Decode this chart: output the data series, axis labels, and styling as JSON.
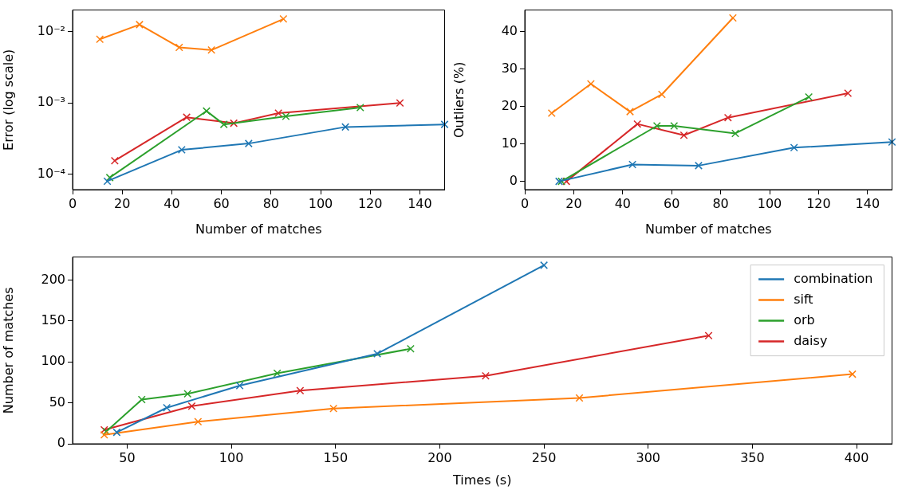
{
  "chart_data": [
    {
      "type": "line",
      "xlabel": "Number of matches",
      "ylabel": "Error (log scale)",
      "log": "y",
      "marker": "cross",
      "xlim": [
        0,
        150
      ],
      "xticks": [
        0,
        20,
        40,
        60,
        80,
        100,
        120,
        140
      ],
      "ylim": [
        6.1e-05,
        0.02
      ],
      "yticks": [
        {
          "value": 0.0001,
          "label": "10⁻⁴"
        },
        {
          "value": 0.001,
          "label": "10⁻³"
        },
        {
          "value": 0.01,
          "label": "10⁻²"
        }
      ],
      "series": [
        {
          "color": "#1f77b4",
          "x": [
            14,
            44,
            71,
            110,
            150
          ],
          "values": [
            8e-05,
            0.00022,
            0.00027,
            0.00046,
            0.0005
          ]
        },
        {
          "color": "#ff7f0e",
          "x": [
            11,
            27,
            43,
            56,
            85
          ],
          "values": [
            0.0078,
            0.0125,
            0.006,
            0.0055,
            0.015
          ]
        },
        {
          "color": "#2ca02c",
          "x": [
            15,
            54,
            61,
            86,
            116
          ],
          "values": [
            9e-05,
            0.00077,
            0.0005,
            0.00065,
            0.00086
          ]
        },
        {
          "color": "#d62728",
          "x": [
            17,
            46,
            65,
            83,
            132
          ],
          "values": [
            0.000155,
            0.00063,
            0.00052,
            0.00072,
            0.001
          ]
        }
      ]
    },
    {
      "type": "line",
      "xlabel": "Number of matches",
      "ylabel": "Outliers (%)",
      "marker": "cross",
      "xlim": [
        0,
        150
      ],
      "xticks": [
        0,
        20,
        40,
        60,
        80,
        100,
        120,
        140
      ],
      "ylim": [
        -2.2,
        45.7
      ],
      "yticks": [
        0,
        10,
        20,
        30,
        40
      ],
      "series": [
        {
          "color": "#1f77b4",
          "x": [
            14,
            44,
            71,
            110,
            150
          ],
          "values": [
            0,
            4.5,
            4.2,
            9,
            10.5
          ]
        },
        {
          "color": "#ff7f0e",
          "x": [
            11,
            27,
            43,
            56,
            85
          ],
          "values": [
            18.2,
            26,
            18.6,
            23.2,
            43.6
          ]
        },
        {
          "color": "#2ca02c",
          "x": [
            15,
            54,
            61,
            86,
            116
          ],
          "values": [
            0,
            14.8,
            14.8,
            12.8,
            22.5
          ]
        },
        {
          "color": "#d62728",
          "x": [
            17,
            46,
            65,
            83,
            132
          ],
          "values": [
            0,
            15.3,
            12.3,
            17,
            23.5
          ]
        }
      ]
    },
    {
      "type": "line",
      "xlabel": "Times (s)",
      "ylabel": "Number of matches",
      "marker": "cross",
      "legend": "top right",
      "xlim": [
        23.8,
        417
      ],
      "xticks": [
        50,
        100,
        150,
        200,
        250,
        300,
        350,
        400
      ],
      "ylim": [
        0,
        228
      ],
      "yticks": [
        0,
        50,
        100,
        150,
        200
      ],
      "series": [
        {
          "name": "combination",
          "color": "#1f77b4",
          "x": [
            45,
            69,
            104,
            170,
            250
          ],
          "values": [
            14,
            44,
            71,
            110,
            218
          ]
        },
        {
          "name": "sift",
          "color": "#ff7f0e",
          "x": [
            39,
            84,
            149,
            267,
            398
          ],
          "values": [
            11,
            27,
            43,
            56,
            85
          ]
        },
        {
          "name": "orb",
          "color": "#2ca02c",
          "x": [
            40,
            57,
            79,
            122,
            186
          ],
          "values": [
            15,
            54,
            61,
            86,
            116
          ]
        },
        {
          "name": "daisy",
          "color": "#d62728",
          "x": [
            39,
            81,
            133,
            222,
            329
          ],
          "values": [
            17,
            46,
            65,
            83,
            132
          ]
        }
      ]
    }
  ]
}
